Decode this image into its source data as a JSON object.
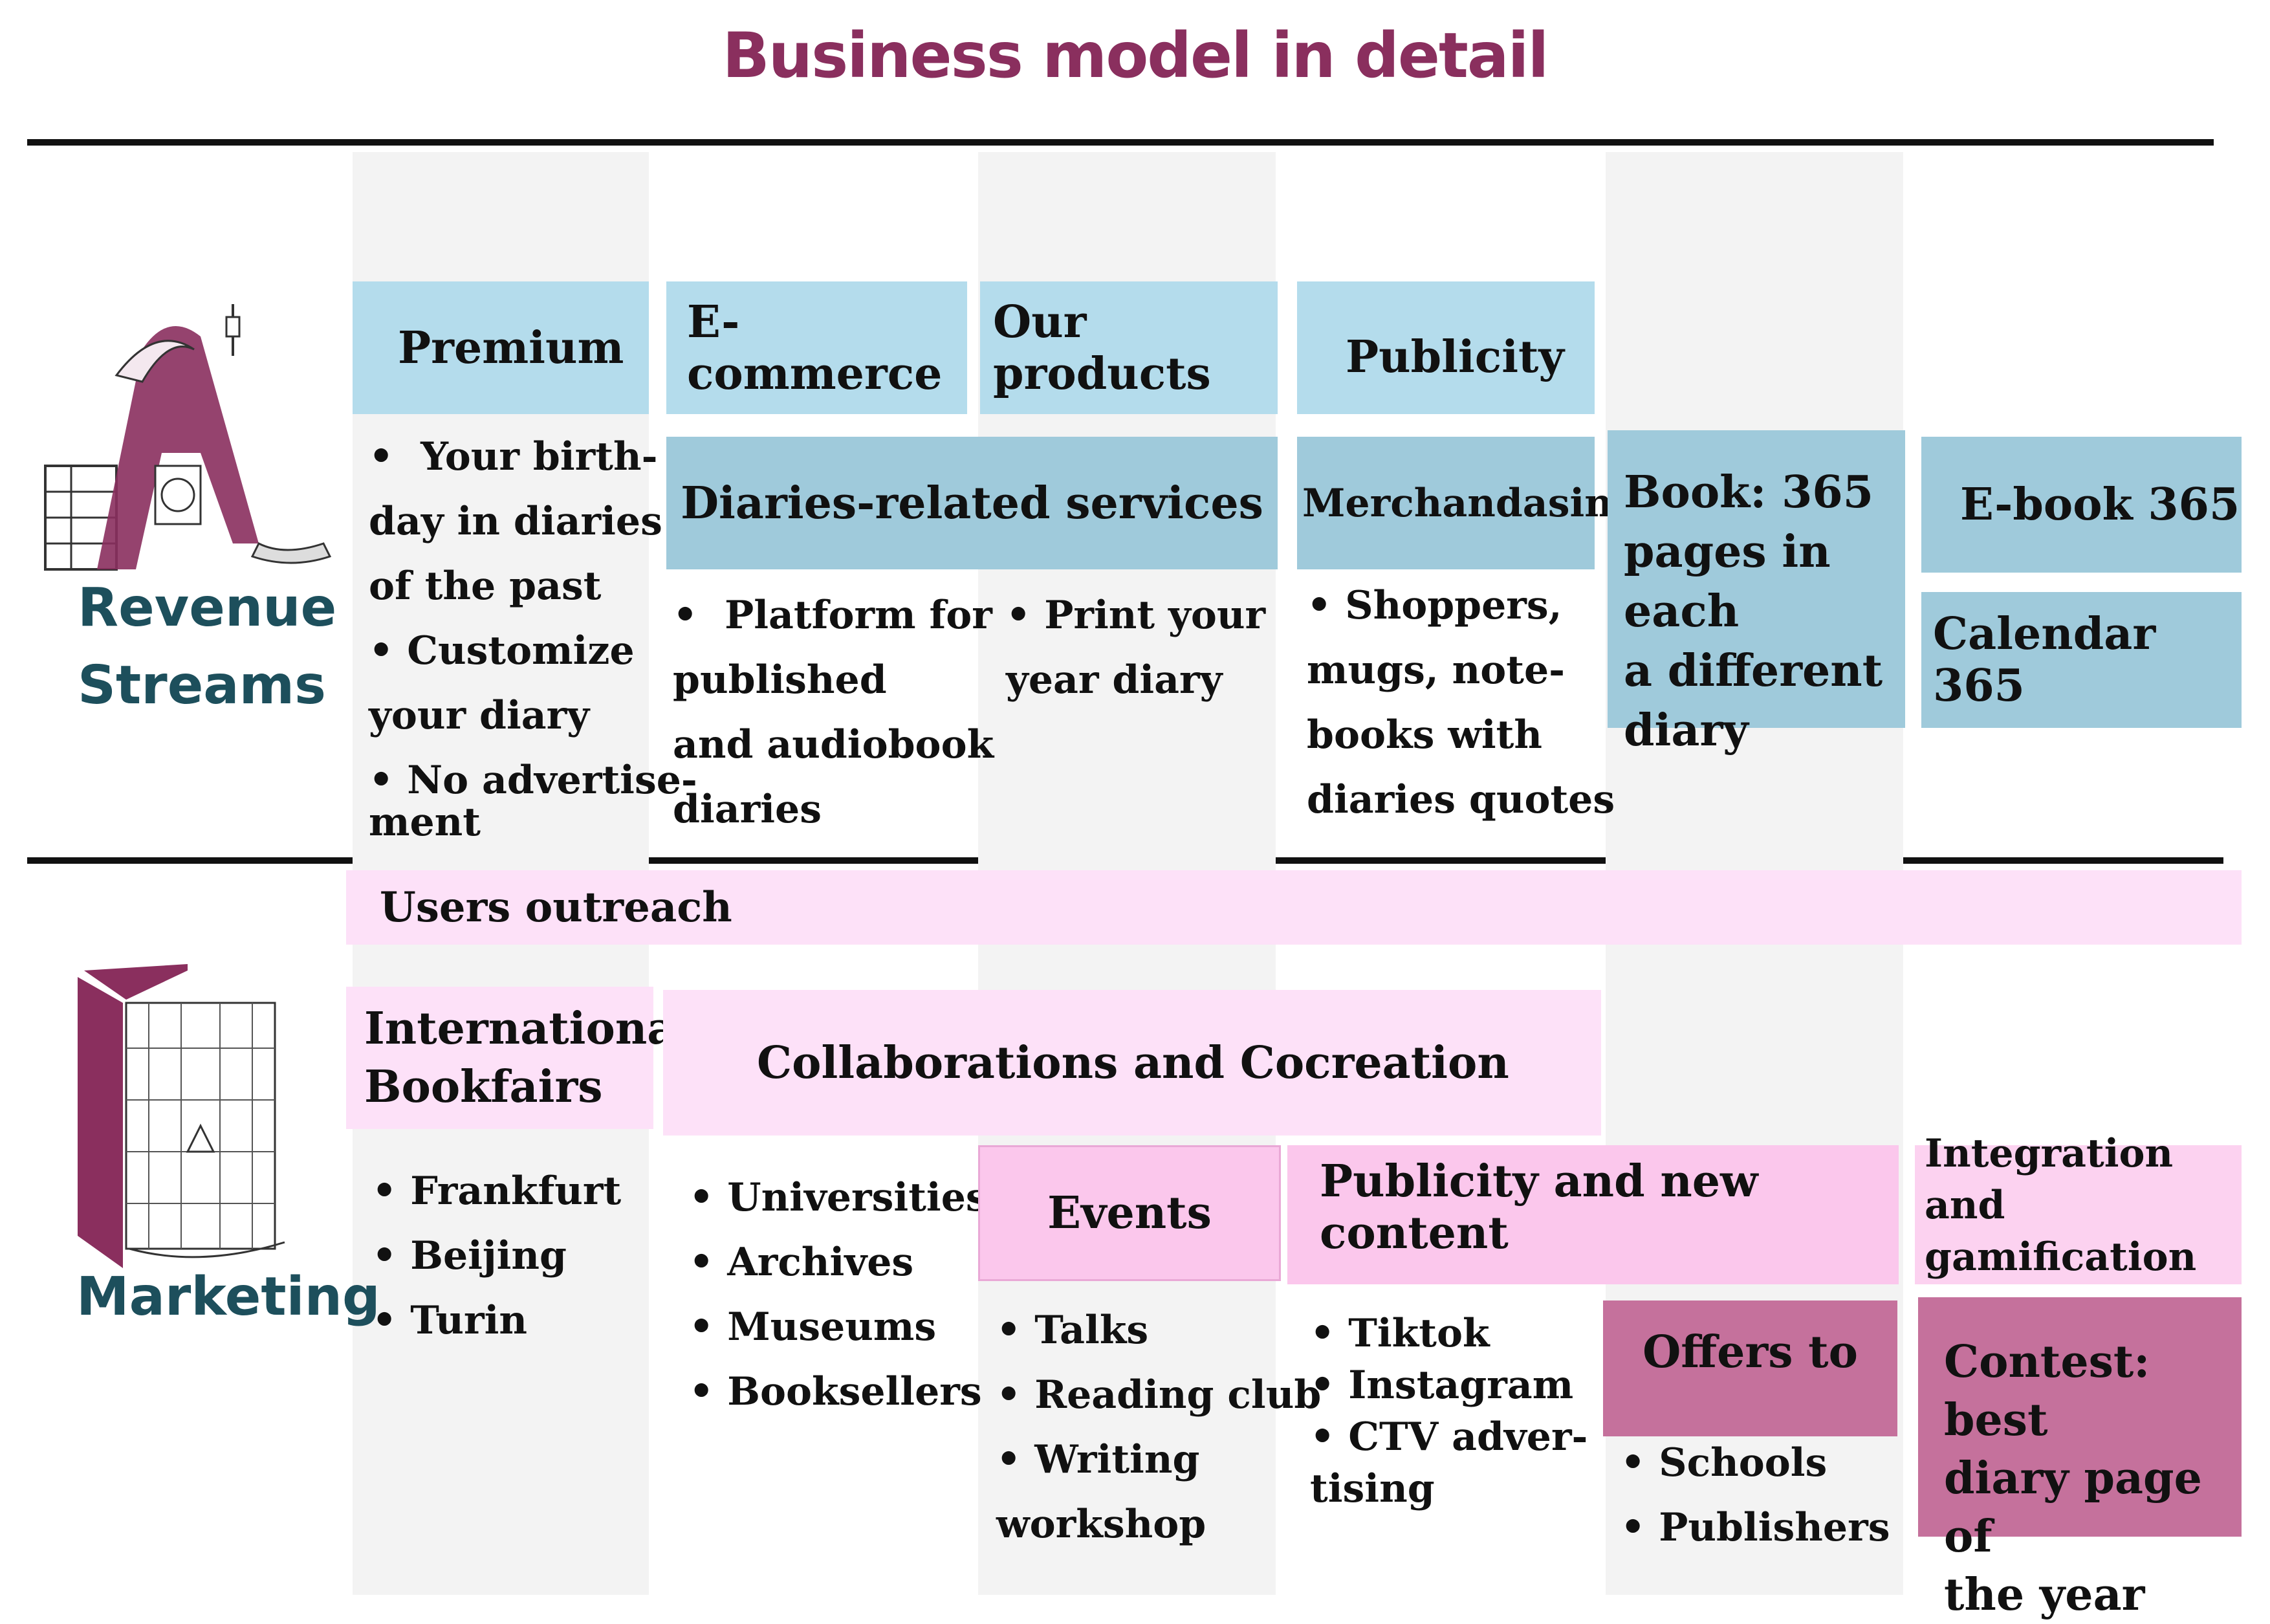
{
  "title": "Business model in detail",
  "colors": {
    "title": "#8a2f5e",
    "side_label": "#1d4f5c",
    "light_blue": "#b4dcec",
    "mid_blue": "#9fcadb",
    "light_pink": "#fde1f8",
    "pink": "#fbc7ec",
    "mauve": "#c5719c"
  },
  "revenue": {
    "side_label_1": "Revenue",
    "side_label_2": "Streams",
    "icon": "illustrated-letter-a-icon",
    "premium": {
      "header": "Premium",
      "line1": "•  Your birth-",
      "line2": "day in diaries",
      "line3": "of the past",
      "line4": "• Customize",
      "line5": "your diary",
      "line6": "• No advertise-",
      "line7": "ment"
    },
    "ecommerce": {
      "header": "E-commerce"
    },
    "our_products": {
      "header": "Our products"
    },
    "publicity": {
      "header": "Publicity"
    },
    "diaries_services": {
      "header": "Diaries-related services",
      "platform_line1": "•  Platform for",
      "platform_line2": "published",
      "platform_line3": "and audiobook",
      "platform_line4": "diaries",
      "print_line1": "• Print your",
      "print_line2": "year diary"
    },
    "merch": {
      "header": "Merchandasing",
      "line1": "• Shoppers,",
      "line2": "mugs, note-",
      "line3": "books with",
      "line4": "diaries quotes"
    },
    "book365": {
      "line1": "Book: 365",
      "line2": "pages in each",
      "line3": "a different",
      "line4": "diary"
    },
    "ebook365": "E-book 365",
    "calendar365": "Calendar 365"
  },
  "marketing": {
    "side_label": "Marketing",
    "icon": "illustrated-book-icon",
    "users_outreach": "Users outreach",
    "bookfairs": {
      "header_line1": "International",
      "header_line2": "Bookfairs",
      "items": [
        "• Frankfurt",
        "• Beijing",
        "• Turin"
      ]
    },
    "collab": {
      "header": "Collaborations and Cocreation",
      "items": [
        "• Universities",
        "• Archives",
        "• Museums",
        "• Booksellers"
      ]
    },
    "events": {
      "header": "Events",
      "items": [
        "• Talks",
        "• Reading club",
        "• Writing",
        "workshop"
      ]
    },
    "publicity_content": {
      "header": "Publicity and new content",
      "items": [
        "• Tiktok",
        "• Instagram",
        "• CTV adver-",
        "tising"
      ]
    },
    "offers": {
      "header": "Offers to",
      "items": [
        "• Schools",
        "• Publishers"
      ]
    },
    "integration": {
      "header_line1": "Integration",
      "header_line2": "and gamification"
    },
    "contest": {
      "line1": "Contest: best",
      "line2": "diary page of",
      "line3": "the year"
    }
  }
}
